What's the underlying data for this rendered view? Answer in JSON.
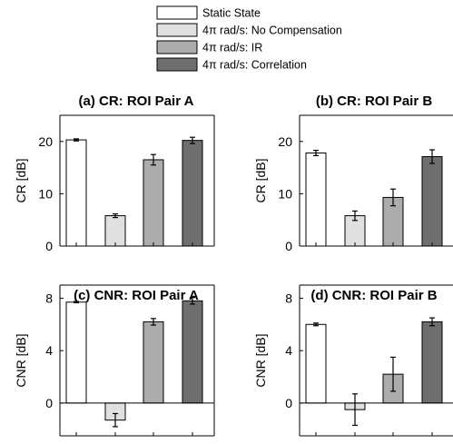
{
  "legend": {
    "placement": "top-center",
    "entries": [
      {
        "label": "Static State",
        "color": "#ffffff"
      },
      {
        "label": "4π rad/s: No Compensation",
        "color": "#e0e0e0"
      },
      {
        "label": "4π rad/s: IR",
        "color": "#acacac"
      },
      {
        "label": "4π rad/s: Correlation",
        "color": "#6e6e6e"
      }
    ]
  },
  "chart_data": [
    {
      "type": "bar",
      "title": "(a) CR: ROI Pair A",
      "ylabel": "CR [dB]",
      "ylim": [
        0,
        25
      ],
      "yticks": [
        0,
        10,
        20
      ],
      "grid": false,
      "series": [
        {
          "name": "Static State",
          "value": 20.3,
          "error": 0.2
        },
        {
          "name": "4π rad/s: No Compensation",
          "value": 5.8,
          "error": 0.35
        },
        {
          "name": "4π rad/s: IR",
          "value": 16.5,
          "error": 1.0
        },
        {
          "name": "4π rad/s: Correlation",
          "value": 20.2,
          "error": 0.6
        }
      ]
    },
    {
      "type": "bar",
      "title": "(b) CR: ROI Pair B",
      "ylabel": "CR [dB]",
      "ylim": [
        0,
        25
      ],
      "yticks": [
        0,
        10,
        20
      ],
      "grid": false,
      "series": [
        {
          "name": "Static State",
          "value": 17.8,
          "error": 0.5
        },
        {
          "name": "4π rad/s: No Compensation",
          "value": 5.8,
          "error": 0.9
        },
        {
          "name": "4π rad/s: IR",
          "value": 9.3,
          "error": 1.6
        },
        {
          "name": "4π rad/s: Correlation",
          "value": 17.1,
          "error": 1.3
        }
      ]
    },
    {
      "type": "bar",
      "title": "(c) CNR: ROI Pair A",
      "ylabel": "CNR [dB]",
      "ylim": [
        -2.5,
        9
      ],
      "yticks": [
        0,
        4,
        8
      ],
      "grid": false,
      "series": [
        {
          "name": "Static State",
          "value": 7.7,
          "error": 0.05
        },
        {
          "name": "4π rad/s: No Compensation",
          "value": -1.3,
          "error": 0.5
        },
        {
          "name": "4π rad/s: IR",
          "value": 6.2,
          "error": 0.25
        },
        {
          "name": "4π rad/s: Correlation",
          "value": 7.8,
          "error": 0.25
        }
      ]
    },
    {
      "type": "bar",
      "title": "(d) CNR: ROI Pair B",
      "ylabel": "CNR [dB]",
      "ylim": [
        -2.5,
        9
      ],
      "yticks": [
        0,
        4,
        8
      ],
      "grid": false,
      "series": [
        {
          "name": "Static State",
          "value": 6.0,
          "error": 0.1
        },
        {
          "name": "4π rad/s: No Compensation",
          "value": -0.5,
          "error": 1.2
        },
        {
          "name": "4π rad/s: IR",
          "value": 2.2,
          "error": 1.3
        },
        {
          "name": "4π rad/s: Correlation",
          "value": 6.2,
          "error": 0.3
        }
      ]
    }
  ]
}
